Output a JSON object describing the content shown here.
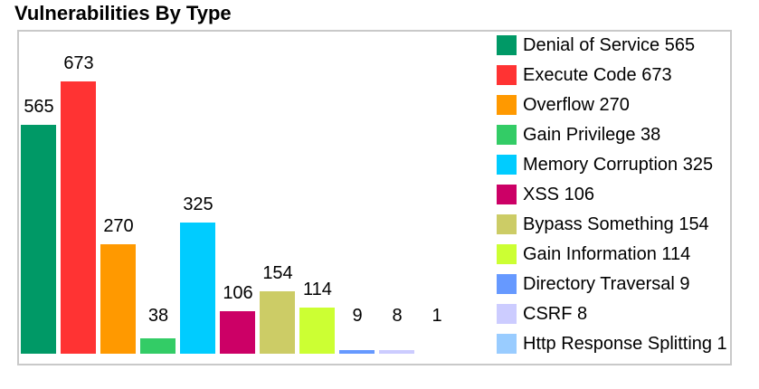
{
  "chart_data": {
    "type": "bar",
    "title": "Vulnerabilities By Type",
    "categories": [
      "Denial of Service",
      "Execute Code",
      "Overflow",
      "Gain Privilege",
      "Memory Corruption",
      "XSS",
      "Bypass Something",
      "Gain Information",
      "Directory Traversal",
      "CSRF",
      "Http Response Splitting"
    ],
    "values": [
      565,
      673,
      270,
      38,
      325,
      106,
      154,
      114,
      9,
      8,
      1
    ],
    "colors": [
      "#009966",
      "#FF3333",
      "#FF9900",
      "#33CC66",
      "#00CCFF",
      "#CC0066",
      "#CCCC66",
      "#CCFF33",
      "#6699FF",
      "#CCCCFF",
      "#99CCFF"
    ],
    "legend_labels": [
      "Denial of Service 565",
      "Execute Code 673",
      "Overflow 270",
      "Gain Privilege 38",
      "Memory Corruption 325",
      "XSS 106",
      "Bypass Something 154",
      "Gain Information 114",
      "Directory Traversal 9",
      "CSRF 8",
      "Http Response Splitting 1"
    ],
    "xlabel": "",
    "ylabel": "",
    "ylim": [
      0,
      700
    ],
    "grid": false,
    "axes": "none",
    "bar_value_labels": true,
    "legend_position": "right-inside",
    "background": "#FFFFFF",
    "border_color": "#C9C9C9",
    "text_color": "#000000"
  }
}
